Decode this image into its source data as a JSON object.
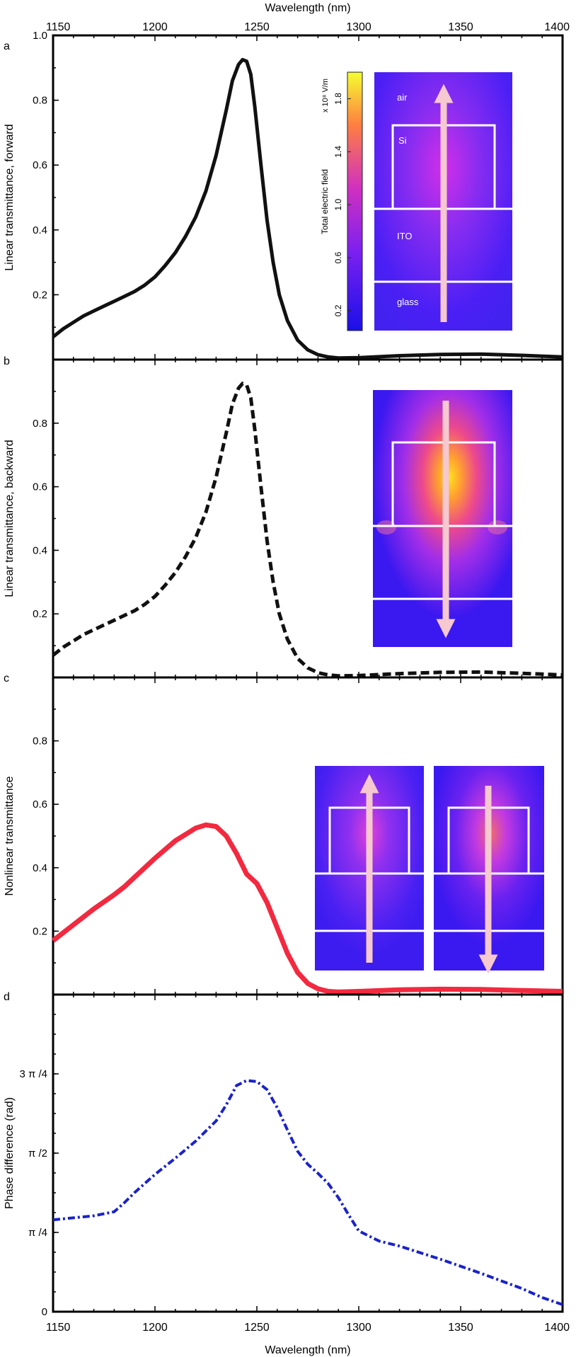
{
  "figure": {
    "top_xlabel": "Wavelength (nm)",
    "bottom_xlabel": "Wavelength (nm)",
    "x_ticks": [
      1150,
      1200,
      1250,
      1300,
      1350,
      1400
    ]
  },
  "chart_data": [
    {
      "panel": "a",
      "type": "line",
      "ylabel": "Linear transmittance, forward",
      "xlim": [
        1150,
        1400
      ],
      "ylim": [
        0,
        1.0
      ],
      "y_ticks": [
        0.2,
        0.4,
        0.6,
        0.8,
        1.0
      ],
      "series": [
        {
          "color": "#111111",
          "style": "solid",
          "x": [
            1150,
            1155,
            1160,
            1165,
            1170,
            1175,
            1180,
            1185,
            1190,
            1195,
            1200,
            1205,
            1210,
            1215,
            1220,
            1225,
            1230,
            1235,
            1238,
            1241,
            1243,
            1245,
            1247,
            1249,
            1252,
            1255,
            1258,
            1261,
            1265,
            1270,
            1275,
            1280,
            1285,
            1290,
            1300,
            1320,
            1340,
            1360,
            1380,
            1400
          ],
          "y": [
            0.07,
            0.095,
            0.115,
            0.135,
            0.15,
            0.165,
            0.18,
            0.195,
            0.21,
            0.23,
            0.255,
            0.29,
            0.33,
            0.38,
            0.44,
            0.52,
            0.63,
            0.77,
            0.86,
            0.91,
            0.925,
            0.92,
            0.88,
            0.78,
            0.6,
            0.43,
            0.3,
            0.2,
            0.12,
            0.06,
            0.03,
            0.015,
            0.008,
            0.005,
            0.006,
            0.012,
            0.016,
            0.017,
            0.013,
            0.008
          ]
        }
      ],
      "inset": {
        "colorbar_label": "Total electric field",
        "colorbar_unit": "x 10⁸ V/m",
        "colorbar_ticks": [
          "0.2",
          "0.6",
          "1.0",
          "1.4",
          "1.8"
        ],
        "layers": [
          "air",
          "Si",
          "ITO",
          "glass"
        ]
      }
    },
    {
      "panel": "b",
      "type": "line",
      "ylabel": "Linear transmittance, backward",
      "xlim": [
        1150,
        1400
      ],
      "ylim": [
        0,
        1.0
      ],
      "y_ticks": [
        0.2,
        0.4,
        0.6,
        0.8
      ],
      "series": [
        {
          "color": "#111111",
          "style": "dashed",
          "x": [
            1150,
            1155,
            1160,
            1165,
            1170,
            1175,
            1180,
            1185,
            1190,
            1195,
            1200,
            1205,
            1210,
            1215,
            1220,
            1225,
            1230,
            1235,
            1238,
            1241,
            1243,
            1245,
            1247,
            1249,
            1252,
            1255,
            1258,
            1261,
            1265,
            1270,
            1275,
            1280,
            1285,
            1290,
            1300,
            1320,
            1340,
            1360,
            1380,
            1400
          ],
          "y": [
            0.07,
            0.095,
            0.115,
            0.135,
            0.15,
            0.165,
            0.18,
            0.195,
            0.21,
            0.23,
            0.255,
            0.29,
            0.33,
            0.38,
            0.44,
            0.52,
            0.63,
            0.77,
            0.86,
            0.91,
            0.925,
            0.92,
            0.88,
            0.78,
            0.6,
            0.43,
            0.3,
            0.2,
            0.12,
            0.06,
            0.03,
            0.015,
            0.008,
            0.005,
            0.006,
            0.012,
            0.016,
            0.017,
            0.013,
            0.008
          ]
        }
      ]
    },
    {
      "panel": "c",
      "type": "line",
      "ylabel": "Nonlinear transmittance",
      "xlim": [
        1150,
        1400
      ],
      "ylim": [
        0,
        1.0
      ],
      "y_ticks": [
        0.2,
        0.4,
        0.6,
        0.8
      ],
      "series": [
        {
          "color": "#f2293f",
          "style": "solid",
          "x": [
            1150,
            1160,
            1170,
            1180,
            1185,
            1190,
            1200,
            1210,
            1220,
            1225,
            1230,
            1235,
            1240,
            1245,
            1250,
            1255,
            1260,
            1265,
            1270,
            1275,
            1280,
            1285,
            1290,
            1300,
            1320,
            1340,
            1360,
            1380,
            1400
          ],
          "y": [
            0.17,
            0.22,
            0.27,
            0.315,
            0.34,
            0.37,
            0.43,
            0.485,
            0.525,
            0.535,
            0.53,
            0.5,
            0.445,
            0.38,
            0.35,
            0.29,
            0.21,
            0.13,
            0.07,
            0.035,
            0.018,
            0.01,
            0.008,
            0.01,
            0.015,
            0.017,
            0.016,
            0.013,
            0.01
          ]
        }
      ]
    },
    {
      "panel": "d",
      "type": "line",
      "ylabel": "Phase difference (rad)",
      "xlim": [
        1150,
        1400
      ],
      "ylim": [
        0,
        3.14159
      ],
      "y_ticks": [
        0,
        0.7854,
        1.5708,
        2.3562
      ],
      "y_tick_labels": [
        "0",
        "π /4",
        "π /2",
        "3 π /4"
      ],
      "series": [
        {
          "color": "#1b22c9",
          "style": "dashdot",
          "x": [
            1150,
            1160,
            1170,
            1180,
            1185,
            1190,
            1200,
            1210,
            1220,
            1230,
            1235,
            1240,
            1245,
            1250,
            1255,
            1260,
            1265,
            1270,
            1275,
            1280,
            1285,
            1290,
            1295,
            1300,
            1310,
            1320,
            1340,
            1360,
            1380,
            1390,
            1400
          ],
          "y": [
            0.91,
            0.93,
            0.95,
            0.99,
            1.08,
            1.18,
            1.36,
            1.52,
            1.69,
            1.89,
            2.05,
            2.24,
            2.29,
            2.28,
            2.2,
            2.02,
            1.8,
            1.59,
            1.46,
            1.37,
            1.27,
            1.13,
            0.96,
            0.8,
            0.7,
            0.65,
            0.52,
            0.38,
            0.23,
            0.14,
            0.07
          ]
        }
      ]
    }
  ]
}
